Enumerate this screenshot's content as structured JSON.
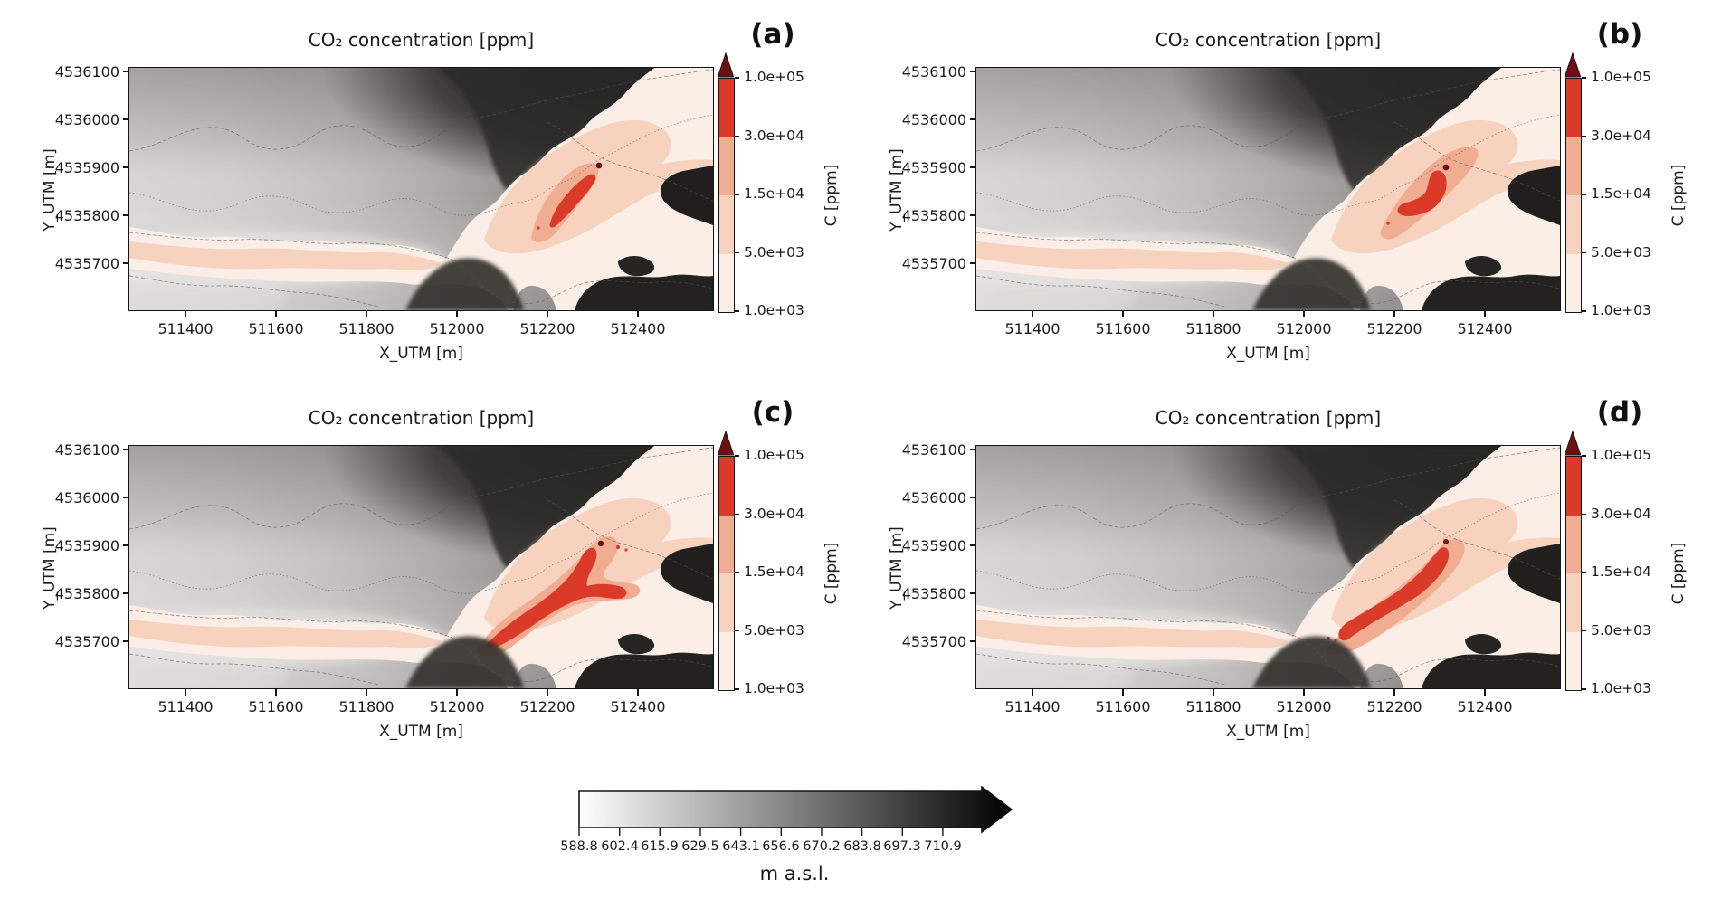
{
  "figure": {
    "panels": [
      {
        "id": "a",
        "label": "(a)",
        "title": "CO₂ concentration [ppm]"
      },
      {
        "id": "b",
        "label": "(b)",
        "title": "CO₂ concentration [ppm]"
      },
      {
        "id": "c",
        "label": "(c)",
        "title": "CO₂ concentration [ppm]"
      },
      {
        "id": "d",
        "label": "(d)",
        "title": "CO₂ concentration [ppm]"
      }
    ],
    "axes": {
      "x_label": "X_UTM [m]",
      "y_label": "Y_UTM [m]",
      "x_ticks": [
        "511400",
        "511600",
        "511800",
        "512000",
        "512200",
        "512400"
      ],
      "y_ticks": [
        "4536100",
        "4536000",
        "4535900",
        "4535800",
        "4535700"
      ]
    },
    "colorbar": {
      "label": "C [ppm]",
      "ticks_top_to_bottom": [
        "1.0e+05",
        "3.0e+04",
        "1.5e+04",
        "5.0e+03",
        "1.0e+03"
      ],
      "segment_colors_top_to_bottom": [
        "#d93b28",
        "#f0ad92",
        "#f6d2bf",
        "#faeee6"
      ],
      "extend_arrow_color": "#6e0f10"
    },
    "elevation_bar": {
      "label": "m a.s.l.",
      "ticks": [
        "588.8",
        "602.4",
        "615.9",
        "629.5",
        "643.1",
        "656.6",
        "670.2",
        "683.8",
        "697.3",
        "710.9"
      ],
      "gradient": [
        "#ffffff",
        "#000000"
      ]
    }
  },
  "chart_data": {
    "type": "heatmap",
    "subtype": "geographic-contour-map-grid",
    "description": "Four panels (a-d) of simulated CO2 concentration [ppm] plumes overlaid on a grayscale terrain elevation hillshade with contour lines; identical spatial domain and color scale in every panel",
    "panels": [
      "(a)",
      "(b)",
      "(c)",
      "(d)"
    ],
    "x": {
      "label": "X_UTM [m]",
      "ticks": [
        511400,
        511600,
        511800,
        512000,
        512200,
        512400
      ],
      "range": [
        511280,
        512570
      ]
    },
    "y": {
      "label": "Y_UTM [m]",
      "ticks": [
        4536100,
        4536000,
        4535900,
        4535800,
        4535700
      ],
      "range": [
        4535600,
        4536110
      ]
    },
    "concentration_colorbar": {
      "label": "C [ppm]",
      "levels_ppm": [
        1000,
        5000,
        15000,
        30000,
        100000
      ],
      "tick_labels_low_to_high": [
        "1.0e+03",
        "5.0e+03",
        "1.5e+04",
        "3.0e+04",
        "1.0e+05"
      ],
      "band_colors_low_to_high": [
        "#faeee6",
        "#f6d2bf",
        "#f0ad92",
        "#d93b28"
      ],
      "extend": "max",
      "extend_color": "#6e0f10",
      "legend_position": "right of each panel"
    },
    "elevation_colorbar": {
      "label": "m a.s.l.",
      "ticks": [
        588.8,
        602.4,
        615.9,
        629.5,
        643.1,
        656.6,
        670.2,
        683.8,
        697.3,
        710.9
      ],
      "colormap": "white-to-black",
      "extend": "max",
      "legend_position": "bottom center of figure"
    },
    "plume_notes": {
      "a": "narrow diagonal high-concentration (>3.0e4 ppm) filament near X 512150-512260, Y 4535770-4535860, vent dot at ~X 512250, Y 4535905",
      "b": "compact vertical high-concentration blob near X 512200-512270, Y 4535780-4535900, vent dot at ~X 512250, Y 4535905",
      "c": "largest branched plume extending from ~X 512030, Y 4535730 northeast to ~X 512260, Y 4535900",
      "d": "elongated thick plume from ~X 512040, Y 4535720 northeast to ~X 512260, Y 4535900",
      "low_band": "pale low-concentration band follows the valley near Y 4535700-4535760 from the west edge and broadens over the eastern basin in all panels"
    },
    "grid": false
  }
}
